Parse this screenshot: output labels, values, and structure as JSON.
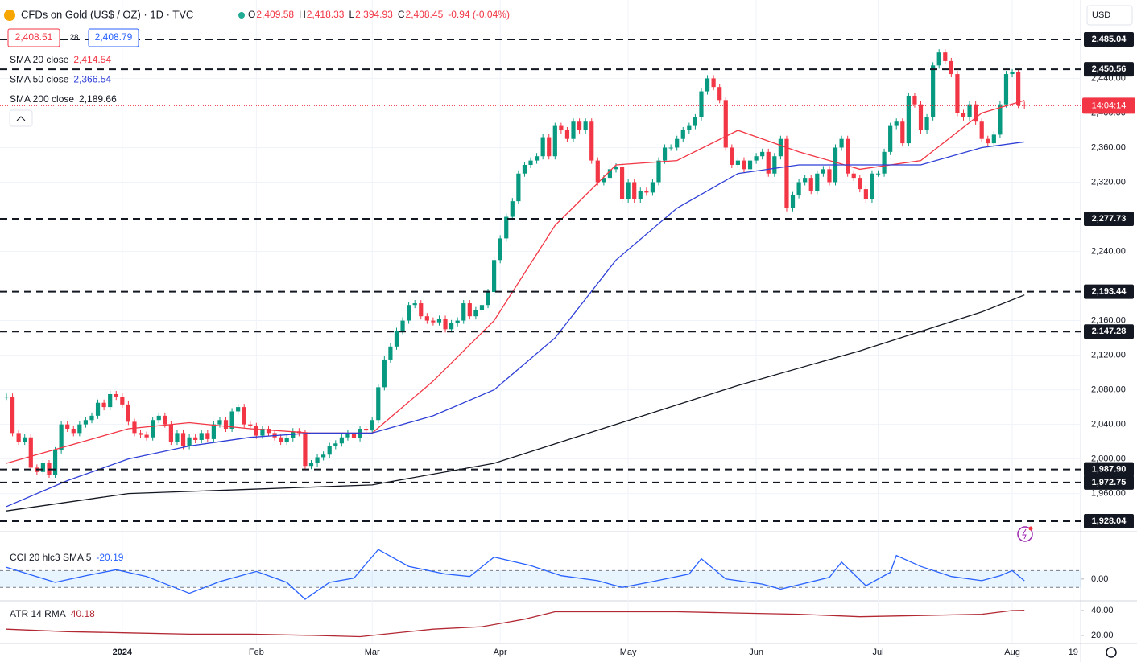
{
  "header": {
    "symbol": "CFDs on Gold (US$ / OZ) · 1D · TVC",
    "ohlc": [
      {
        "key": "O",
        "value": "2,409.58"
      },
      {
        "key": "H",
        "value": "2,418.33"
      },
      {
        "key": "L",
        "value": "2,394.93"
      },
      {
        "key": "C",
        "value": "2,408.45"
      }
    ],
    "change": "-0.94 (-0.04%)",
    "bid": "2,408.51",
    "spread": "28",
    "ask": "2,408.79",
    "currency": "USD",
    "countdown": "14:04:14"
  },
  "chart_data": [
    {
      "type": "candlestick",
      "up_color": "#089981",
      "down_color": "#f23645",
      "categories": [
        null,
        null,
        null,
        null,
        null,
        null,
        null,
        null,
        null,
        null,
        null,
        null,
        null,
        null,
        null,
        null,
        null,
        null,
        null,
        "2024",
        null,
        null,
        null,
        null,
        null,
        null,
        null,
        null,
        null,
        null,
        null,
        null,
        null,
        null,
        null,
        null,
        null,
        null,
        null,
        null,
        null,
        "Feb",
        null,
        null,
        null,
        null,
        null,
        null,
        null,
        null,
        null,
        null,
        null,
        null,
        null,
        null,
        null,
        null,
        null,
        null,
        "Mar",
        null,
        null,
        null,
        null,
        null,
        null,
        null,
        null,
        null,
        null,
        null,
        null,
        null,
        null,
        null,
        null,
        null,
        null,
        null,
        null,
        "Apr",
        null,
        null,
        null,
        null,
        null,
        null,
        null,
        null,
        null,
        null,
        null,
        null,
        null,
        null,
        null,
        null,
        null,
        null,
        null,
        null,
        "May",
        null,
        null,
        null,
        null,
        null,
        null,
        null,
        null,
        null,
        null,
        null,
        null,
        null,
        null,
        null,
        null,
        null,
        null,
        null,
        null,
        "Jun",
        null,
        null,
        null,
        null,
        null,
        null,
        null,
        null,
        null,
        null,
        null,
        null,
        null,
        null,
        null,
        null,
        null,
        null,
        null,
        "Jul",
        null,
        null,
        null,
        null,
        null,
        null,
        null,
        null,
        null,
        null,
        null,
        null,
        null,
        null,
        null,
        null,
        null,
        null,
        null,
        null,
        null,
        "Aug",
        null,
        null,
        null,
        null,
        null,
        null,
        null,
        null,
        null,
        "19"
      ],
      "values": [
        2072,
        2030,
        2020,
        2025,
        1990,
        1985,
        1995,
        1982,
        2010,
        2040,
        2035,
        2030,
        2040,
        2045,
        2050,
        2065,
        2060,
        2075,
        2072,
        2063,
        2043,
        2030,
        2028,
        2025,
        2045,
        2050,
        2040,
        2020,
        2030,
        2015,
        2025,
        2022,
        2030,
        2023,
        2040,
        2045,
        2035,
        2055,
        2060,
        2040,
        2038,
        2027,
        2035,
        2030,
        2025,
        2020,
        2024,
        2032,
        2030,
        1992,
        1995,
        2002,
        2005,
        2015,
        2018,
        2025,
        2030,
        2024,
        2035,
        2033,
        2045,
        2083,
        2115,
        2130,
        2148,
        2160,
        2178,
        2180,
        2165,
        2160,
        2158,
        2162,
        2150,
        2157,
        2160,
        2180,
        2165,
        2172,
        2178,
        2193,
        2230,
        2255,
        2280,
        2298,
        2330,
        2340,
        2345,
        2350,
        2372,
        2350,
        2385,
        2380,
        2370,
        2390,
        2380,
        2390,
        2345,
        2320,
        2325,
        2335,
        2338,
        2300,
        2320,
        2300,
        2310,
        2308,
        2320,
        2345,
        2360,
        2360,
        2370,
        2380,
        2385,
        2395,
        2425,
        2440,
        2430,
        2415,
        2360,
        2340,
        2345,
        2335,
        2345,
        2350,
        2355,
        2330,
        2350,
        2370,
        2290,
        2305,
        2320,
        2325,
        2310,
        2330,
        2335,
        2320,
        2360,
        2370,
        2330,
        2325,
        2312,
        2300,
        2330,
        2330,
        2355,
        2385,
        2390,
        2365,
        2420,
        2410,
        2380,
        2395,
        2455,
        2470,
        2460,
        2445,
        2400,
        2395,
        2410,
        2390,
        2370,
        2365,
        2375,
        2410,
        2445,
        2447,
        2409.39,
        2408.45,
        null,
        null,
        null,
        null,
        null,
        null,
        null,
        null
      ],
      "ylim": [
        1916.9,
        2530.6
      ],
      "yticks": [
        {
          "value": 1960,
          "label": "1,960.00"
        },
        {
          "value": 2000,
          "label": "2,000.00"
        },
        {
          "value": 2040,
          "label": "2,040.00"
        },
        {
          "value": 2080,
          "label": "2,080.00"
        },
        {
          "value": 2120,
          "label": "2,120.00"
        },
        {
          "value": 2160,
          "label": "2,160.00"
        },
        {
          "value": 2240,
          "label": "2,240.00"
        },
        {
          "value": 2320,
          "label": "2,320.00"
        },
        {
          "value": 2360,
          "label": "2,360.00"
        },
        {
          "value": 2400,
          "label": "2,400.00"
        },
        {
          "value": 2440,
          "label": "2,440.00"
        }
      ],
      "levels": [
        {
          "value": 2485.04,
          "label": "2,485.04"
        },
        {
          "value": 2450.56,
          "label": "2,450.56"
        },
        {
          "value": 2277.73,
          "label": "2,277.73"
        },
        {
          "value": 2193.44,
          "label": "2,193.44"
        },
        {
          "value": 2147.28,
          "label": "2,147.28"
        },
        {
          "value": 1987.9,
          "label": "1,987.90"
        },
        {
          "value": 1972.75,
          "label": "1,972.75"
        },
        {
          "value": 1928.04,
          "label": "1,928.04"
        }
      ],
      "series": [
        {
          "name": "SMA 20 close",
          "legend_value": "2,414.54",
          "color": "#f23645",
          "x": [
            0,
            10,
            20,
            30,
            40,
            50,
            60,
            70,
            80,
            90,
            100,
            110,
            120,
            130,
            140,
            150,
            160,
            167
          ],
          "values": [
            1995,
            2015,
            2035,
            2042,
            2035,
            2030,
            2030,
            2090,
            2160,
            2270,
            2340,
            2345,
            2380,
            2355,
            2335,
            2345,
            2400,
            2414.54
          ]
        },
        {
          "name": "SMA 50 close",
          "legend_value": "2,366.54",
          "color": "#2f3fd6",
          "x": [
            0,
            10,
            20,
            30,
            40,
            50,
            60,
            70,
            80,
            90,
            100,
            110,
            120,
            130,
            140,
            150,
            160,
            167
          ],
          "values": [
            1945,
            1975,
            2000,
            2015,
            2025,
            2030,
            2030,
            2050,
            2080,
            2140,
            2230,
            2290,
            2330,
            2340,
            2340,
            2340,
            2360,
            2366.54
          ]
        },
        {
          "name": "SMA 200 close",
          "legend_value": "2,189.66",
          "color": "#131722",
          "x": [
            0,
            20,
            40,
            60,
            80,
            100,
            120,
            140,
            160,
            167
          ],
          "values": [
            1940,
            1960,
            1965,
            1970,
            1995,
            2040,
            2085,
            2125,
            2170,
            2189.66
          ]
        }
      ]
    },
    {
      "type": "line",
      "name": "CCI 20 hlc3 SMA 5",
      "legend_value": "-20.19",
      "color": "#2962ff",
      "x": [
        0,
        4,
        8,
        13,
        18,
        23,
        30,
        35,
        41,
        46,
        49,
        53,
        57,
        61,
        66,
        72,
        76,
        80,
        86,
        91,
        97,
        101,
        106,
        112,
        114,
        118,
        124,
        127,
        131,
        135,
        137,
        141,
        145,
        146,
        150,
        155,
        160,
        163,
        165,
        167
      ],
      "values": [
        140,
        50,
        -40,
        40,
        110,
        30,
        -170,
        -30,
        90,
        -40,
        -240,
        -40,
        10,
        350,
        150,
        60,
        30,
        260,
        160,
        40,
        -20,
        -100,
        -30,
        60,
        240,
        0,
        -60,
        -120,
        -50,
        20,
        200,
        -80,
        80,
        280,
        150,
        30,
        -20,
        40,
        100,
        -20.19
      ],
      "band": [
        -100,
        100
      ],
      "ylim": [
        -250,
        400
      ],
      "yticks": [
        {
          "value": 0,
          "label": "0.00"
        }
      ]
    },
    {
      "type": "line",
      "name": "ATR 14 RMA",
      "legend_value": "40.18",
      "color": "#b22833",
      "x": [
        0,
        10,
        20,
        30,
        40,
        50,
        58,
        62,
        70,
        78,
        85,
        90,
        100,
        110,
        120,
        130,
        140,
        150,
        160,
        165,
        167
      ],
      "values": [
        25,
        23,
        22,
        21,
        21,
        20,
        19,
        21,
        25,
        27,
        33,
        39,
        39,
        39,
        38,
        37,
        35,
        36,
        37,
        40,
        40.18
      ],
      "ylim": [
        13.5,
        47.1
      ],
      "yticks": [
        {
          "value": 20,
          "label": "20.00"
        },
        {
          "value": 40,
          "label": "40.00"
        }
      ]
    }
  ]
}
